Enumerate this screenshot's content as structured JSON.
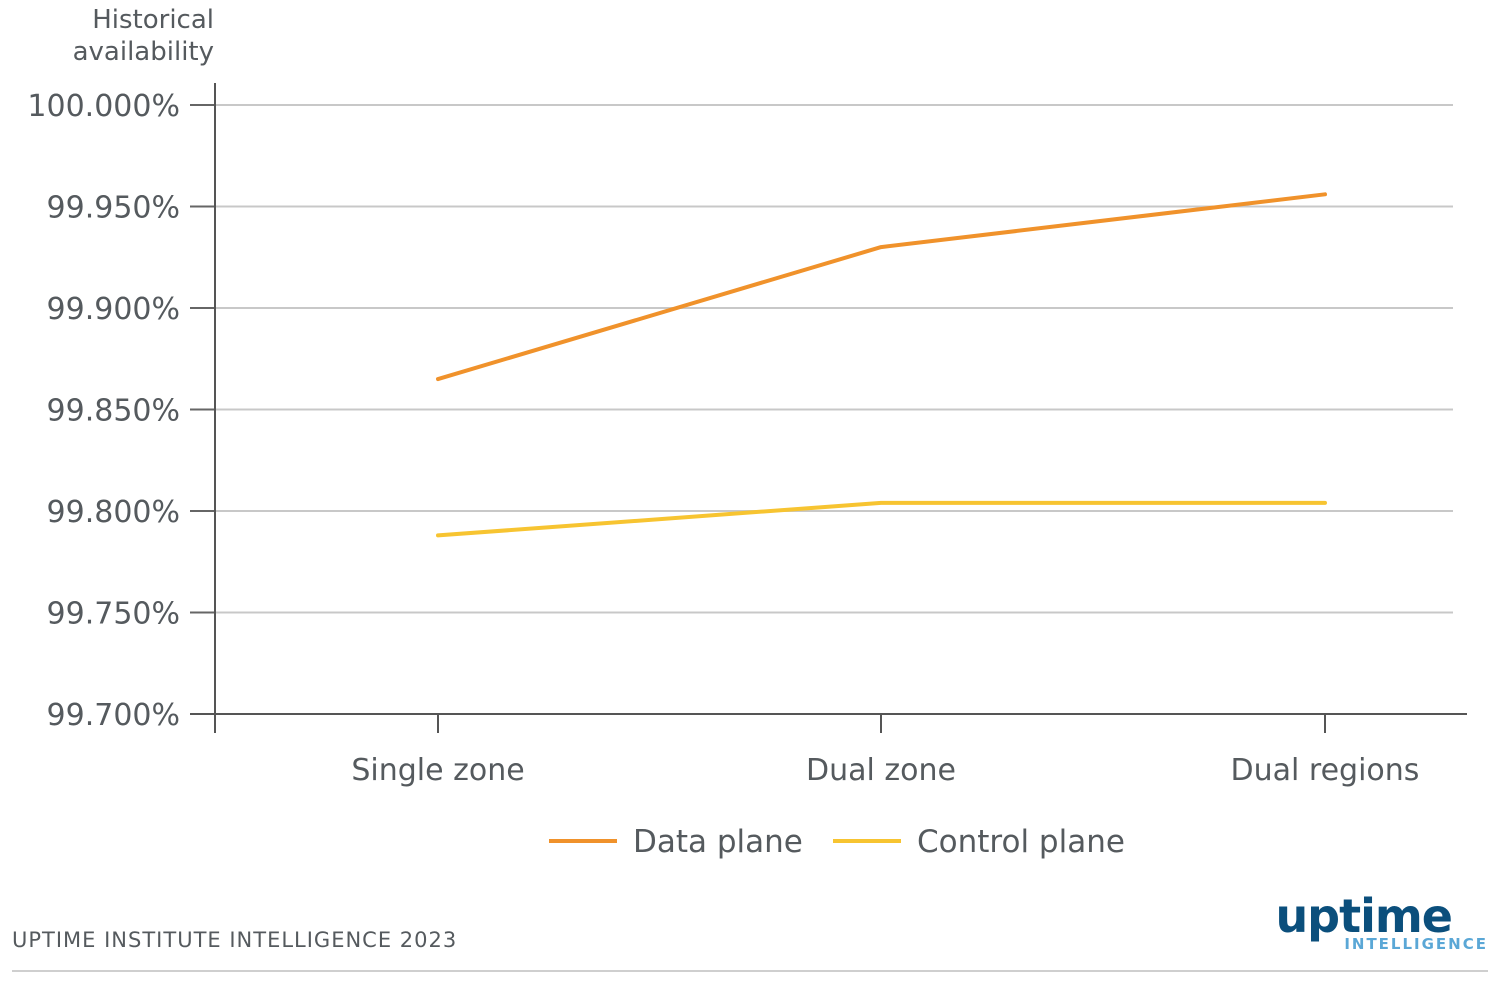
{
  "chart_data": {
    "type": "line",
    "ylabel_lines": [
      "Historical",
      "availability"
    ],
    "categories": [
      "Single zone",
      "Dual zone",
      "Dual regions"
    ],
    "yticks": [
      "100.000%",
      "99.950%",
      "99.900%",
      "99.850%",
      "99.800%",
      "99.750%",
      "99.700%"
    ],
    "ylim": [
      99.7,
      100.0
    ],
    "grid": true,
    "legend_position": "bottom",
    "series": [
      {
        "name": "Data plane",
        "values": [
          99.865,
          99.93,
          99.956
        ],
        "color": "#f0922b"
      },
      {
        "name": "Control plane",
        "values": [
          99.788,
          99.804,
          99.804
        ],
        "color": "#f7c431"
      }
    ]
  },
  "footer": {
    "source": "UPTIME INSTITUTE INTELLIGENCE 2023"
  },
  "logo": {
    "main": "uptime",
    "sub": "INTELLIGENCE"
  }
}
